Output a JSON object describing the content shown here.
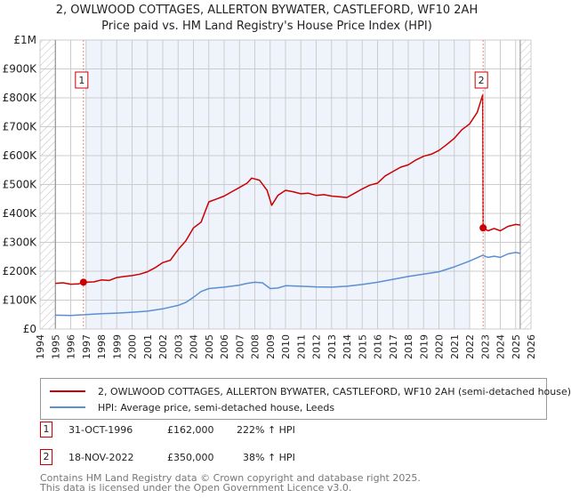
{
  "chart_data": {
    "type": "line",
    "title": "2, OWLWOOD COTTAGES, ALLERTON BYWATER, CASTLEFORD, WF10 2AH",
    "subtitle": "Price paid vs. HM Land Registry's House Price Index (HPI)",
    "xlim": [
      1994,
      2026
    ],
    "ylim": [
      0,
      1000000
    ],
    "x_ticks": [
      "1994",
      "1995",
      "1996",
      "1997",
      "1998",
      "1999",
      "2000",
      "2001",
      "2002",
      "2003",
      "2004",
      "2005",
      "2006",
      "2007",
      "2008",
      "2009",
      "2010",
      "2011",
      "2012",
      "2013",
      "2014",
      "2015",
      "2016",
      "2017",
      "2018",
      "2019",
      "2020",
      "2021",
      "2022",
      "2023",
      "2024",
      "2025",
      "2026"
    ],
    "y_ticks": [
      {
        "value": 0,
        "label": "£0"
      },
      {
        "value": 100000,
        "label": "£100K"
      },
      {
        "value": 200000,
        "label": "£200K"
      },
      {
        "value": 300000,
        "label": "£300K"
      },
      {
        "value": 400000,
        "label": "£400K"
      },
      {
        "value": 500000,
        "label": "£500K"
      },
      {
        "value": 600000,
        "label": "£600K"
      },
      {
        "value": 700000,
        "label": "£700K"
      },
      {
        "value": 800000,
        "label": "£800K"
      },
      {
        "value": 900000,
        "label": "£900K"
      },
      {
        "value": 1000000,
        "label": "£1M"
      }
    ],
    "grid": true,
    "shaded_range": [
      1997,
      2022
    ],
    "hatched_before": 1995,
    "hatched_after": 2025.3,
    "series": [
      {
        "name": "2, OWLWOOD COTTAGES, ALLERTON BYWATER, CASTLEFORD, WF10 2AH (semi-detached house)",
        "color": "#cc0000",
        "x": [
          1995,
          1995.5,
          1996,
          1996.5,
          1996.83,
          1997.5,
          1998,
          1998.5,
          1999,
          1999.5,
          2000,
          2000.5,
          2001,
          2001.5,
          2002,
          2002.5,
          2003,
          2003.5,
          2004,
          2004.5,
          2005,
          2005.5,
          2006,
          2006.5,
          2007,
          2007.5,
          2007.8,
          2008.3,
          2008.8,
          2009.1,
          2009.5,
          2010,
          2010.5,
          2011,
          2011.5,
          2012,
          2012.5,
          2013,
          2013.5,
          2014,
          2014.5,
          2015,
          2015.5,
          2016,
          2016.5,
          2017,
          2017.5,
          2018,
          2018.5,
          2019,
          2019.5,
          2020,
          2020.5,
          2021,
          2021.5,
          2022,
          2022.5,
          2022.85,
          2022.88,
          2023.2,
          2023.6,
          2024,
          2024.5,
          2025,
          2025.3
        ],
        "y": [
          158000,
          160000,
          155000,
          156000,
          162000,
          163000,
          170000,
          168000,
          178000,
          182000,
          185000,
          190000,
          198000,
          212000,
          230000,
          238000,
          275000,
          305000,
          350000,
          370000,
          440000,
          450000,
          460000,
          475000,
          490000,
          505000,
          522000,
          515000,
          480000,
          428000,
          462000,
          480000,
          475000,
          468000,
          470000,
          462000,
          465000,
          460000,
          458000,
          455000,
          470000,
          485000,
          498000,
          505000,
          530000,
          545000,
          560000,
          568000,
          585000,
          598000,
          605000,
          618000,
          638000,
          660000,
          690000,
          710000,
          750000,
          810000,
          350000,
          340000,
          348000,
          340000,
          355000,
          362000,
          360000
        ]
      },
      {
        "name": "HPI: Average price, semi-detached house, Leeds",
        "color": "#5b8fd4",
        "x": [
          1995,
          1996,
          1997,
          1998,
          1999,
          2000,
          2001,
          2002,
          2003,
          2003.5,
          2004,
          2004.5,
          2005,
          2006,
          2007,
          2007.5,
          2008,
          2008.5,
          2009,
          2009.5,
          2010,
          2011,
          2012,
          2013,
          2014,
          2015,
          2016,
          2017,
          2018,
          2019,
          2020,
          2021,
          2022,
          2022.85,
          2023.2,
          2023.6,
          2024,
          2024.5,
          2025,
          2025.3
        ],
        "y": [
          48000,
          47000,
          50000,
          53000,
          55000,
          58000,
          62000,
          70000,
          82000,
          92000,
          110000,
          130000,
          140000,
          145000,
          152000,
          158000,
          162000,
          160000,
          140000,
          142000,
          150000,
          148000,
          146000,
          145000,
          148000,
          154000,
          162000,
          172000,
          182000,
          190000,
          198000,
          215000,
          235000,
          255000,
          248000,
          252000,
          248000,
          260000,
          265000,
          262000
        ]
      }
    ],
    "sales": [
      {
        "label": "1",
        "x": 1996.83,
        "y": 162000
      },
      {
        "label": "2",
        "x": 2022.88,
        "y": 350000
      }
    ]
  },
  "table": [
    {
      "num": "1",
      "date": "31-OCT-1996",
      "price": "£162,000",
      "hpi": "222% ↑ HPI"
    },
    {
      "num": "2",
      "date": "18-NOV-2022",
      "price": "£350,000",
      "hpi": "38% ↑ HPI"
    }
  ],
  "footer": {
    "line1": "Contains HM Land Registry data © Crown copyright and database right 2025.",
    "line2": "This data is licensed under the Open Government Licence v3.0."
  }
}
